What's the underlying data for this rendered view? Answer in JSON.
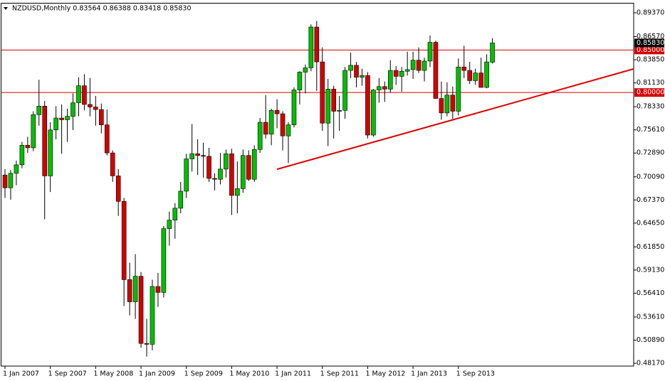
{
  "chart_data": {
    "type": "candlestick",
    "title": "NZDUSD,Monthly  0.83564 0.86388 0.83418 0.85830",
    "categories": [
      "1 Jan 2007",
      null,
      null,
      null,
      null,
      null,
      null,
      null,
      "1 Sep 2007",
      null,
      null,
      null,
      null,
      null,
      null,
      null,
      "1 May 2008",
      null,
      null,
      null,
      null,
      null,
      null,
      null,
      "1 Jan 2009",
      null,
      null,
      null,
      null,
      null,
      null,
      null,
      "1 Sep 2009",
      null,
      null,
      null,
      null,
      null,
      null,
      null,
      "1 May 2010",
      null,
      null,
      null,
      null,
      null,
      null,
      null,
      "1 Jan 2011",
      null,
      null,
      null,
      null,
      null,
      null,
      null,
      "1 Sep 2011",
      null,
      null,
      null,
      null,
      null,
      null,
      null,
      "1 May 2012",
      null,
      null,
      null,
      null,
      null,
      null,
      null,
      "1 Jan 2013",
      null,
      null,
      null,
      null,
      null,
      null,
      null,
      "1 Sep 2013",
      null,
      null,
      null,
      null,
      null,
      null
    ],
    "open": [
      0.703,
      0.688,
      0.705,
      0.715,
      0.738,
      0.735,
      0.774,
      0.784,
      0.702,
      0.756,
      0.77,
      0.768,
      0.772,
      0.788,
      0.808,
      0.786,
      0.783,
      0.78,
      0.762,
      0.729,
      0.702,
      0.672,
      0.58,
      0.554,
      0.584,
      0.505,
      0.504,
      0.572,
      0.565,
      0.64,
      0.65,
      0.664,
      0.684,
      0.722,
      0.728,
      0.726,
      0.725,
      0.699,
      0.698,
      0.71,
      0.728,
      0.679,
      0.687,
      0.726,
      0.698,
      0.733,
      0.765,
      0.751,
      0.779,
      0.775,
      0.749,
      0.762,
      0.803,
      0.824,
      0.829,
      0.877,
      0.836,
      0.764,
      0.804,
      0.778,
      0.779,
      0.826,
      0.832,
      0.818,
      0.82,
      0.75,
      0.803,
      0.807,
      0.804,
      0.826,
      0.819,
      0.825,
      0.827,
      0.838,
      0.826,
      0.837,
      0.859,
      0.793,
      0.776,
      0.797,
      0.778,
      0.83,
      0.826,
      0.814,
      0.823,
      0.806,
      0.83564
    ],
    "high": [
      0.71,
      0.709,
      0.72,
      0.742,
      0.748,
      0.778,
      0.815,
      0.79,
      0.765,
      0.784,
      0.786,
      0.781,
      0.799,
      0.818,
      0.8215,
      0.817,
      0.796,
      0.787,
      0.78,
      0.732,
      0.71,
      0.676,
      0.6,
      0.61,
      0.589,
      0.534,
      0.58,
      0.588,
      0.643,
      0.66,
      0.67,
      0.695,
      0.728,
      0.763,
      0.745,
      0.741,
      0.735,
      0.705,
      0.729,
      0.733,
      0.734,
      0.719,
      0.733,
      0.732,
      0.738,
      0.77,
      0.797,
      0.781,
      0.792,
      0.778,
      0.765,
      0.806,
      0.825,
      0.833,
      0.88,
      0.884,
      0.853,
      0.816,
      0.808,
      0.796,
      0.83,
      0.847,
      0.836,
      0.828,
      0.824,
      0.804,
      0.817,
      0.813,
      0.838,
      0.831,
      0.83,
      0.848,
      0.848,
      0.853,
      0.841,
      0.867,
      0.861,
      0.813,
      0.812,
      0.807,
      0.84,
      0.855,
      0.836,
      0.828,
      0.841,
      0.845,
      0.86388
    ],
    "low": [
      0.676,
      0.674,
      0.691,
      0.711,
      0.729,
      0.731,
      0.761,
      0.651,
      0.683,
      0.745,
      0.728,
      0.742,
      0.756,
      0.772,
      0.779,
      0.772,
      0.761,
      0.752,
      0.726,
      0.695,
      0.655,
      0.549,
      0.538,
      0.534,
      0.5,
      0.4896,
      0.497,
      0.548,
      0.559,
      0.62,
      0.628,
      0.658,
      0.676,
      0.707,
      0.703,
      0.7,
      0.695,
      0.685,
      0.692,
      0.7,
      0.656,
      0.658,
      0.682,
      0.696,
      0.695,
      0.729,
      0.746,
      0.738,
      0.758,
      0.732,
      0.717,
      0.759,
      0.786,
      0.799,
      0.825,
      0.802,
      0.755,
      0.737,
      0.746,
      0.755,
      0.769,
      0.817,
      0.806,
      0.808,
      0.746,
      0.748,
      0.788,
      0.789,
      0.8,
      0.809,
      0.801,
      0.82,
      0.816,
      0.823,
      0.813,
      0.83,
      0.793,
      0.768,
      0.772,
      0.769,
      0.773,
      0.817,
      0.81,
      0.809,
      0.806,
      0.805,
      0.83418
    ],
    "close": [
      0.688,
      0.705,
      0.715,
      0.738,
      0.735,
      0.774,
      0.784,
      0.702,
      0.756,
      0.77,
      0.768,
      0.772,
      0.788,
      0.808,
      0.786,
      0.783,
      0.78,
      0.762,
      0.729,
      0.702,
      0.672,
      0.58,
      0.554,
      0.584,
      0.505,
      0.504,
      0.572,
      0.565,
      0.64,
      0.65,
      0.664,
      0.684,
      0.722,
      0.728,
      0.726,
      0.725,
      0.699,
      0.698,
      0.71,
      0.728,
      0.679,
      0.687,
      0.726,
      0.698,
      0.733,
      0.765,
      0.751,
      0.779,
      0.775,
      0.749,
      0.762,
      0.803,
      0.824,
      0.829,
      0.877,
      0.836,
      0.764,
      0.804,
      0.778,
      0.779,
      0.826,
      0.832,
      0.818,
      0.82,
      0.75,
      0.803,
      0.807,
      0.804,
      0.826,
      0.819,
      0.825,
      0.827,
      0.838,
      0.826,
      0.837,
      0.859,
      0.793,
      0.776,
      0.797,
      0.778,
      0.83,
      0.826,
      0.814,
      0.823,
      0.806,
      0.836,
      0.8583
    ],
    "up_color": "#00c000",
    "down_color": "#d40000",
    "ylim": [
      0.4784,
      0.9046
    ],
    "yticks": [
      {
        "value": 0.8937,
        "label": "0.89370"
      },
      {
        "value": 0.8657,
        "label": "0.86570"
      },
      {
        "value": 0.8385,
        "label": "0.83850"
      },
      {
        "value": 0.8113,
        "label": "0.81130"
      },
      {
        "value": 0.7833,
        "label": "0.78330"
      },
      {
        "value": 0.7561,
        "label": "0.75610"
      },
      {
        "value": 0.7289,
        "label": "0.72890"
      },
      {
        "value": 0.7009,
        "label": "0.70090"
      },
      {
        "value": 0.6737,
        "label": "0.67370"
      },
      {
        "value": 0.6465,
        "label": "0.64650"
      },
      {
        "value": 0.6185,
        "label": "0.61850"
      },
      {
        "value": 0.5913,
        "label": "0.59130"
      },
      {
        "value": 0.5641,
        "label": "0.56410"
      },
      {
        "value": 0.5361,
        "label": "0.53610"
      },
      {
        "value": 0.5089,
        "label": "0.50890"
      },
      {
        "value": 0.4817,
        "label": "0.48170"
      }
    ],
    "hlines": [
      {
        "value": 0.85,
        "label": "0.85000"
      },
      {
        "value": 0.8,
        "label": "0.80000"
      }
    ],
    "hline_color": "#d40000",
    "last_price": {
      "value": 0.8583,
      "label": "0.85830"
    },
    "trendline": {
      "x": [
        48,
        110.9
      ],
      "y": [
        0.7098,
        0.8277
      ],
      "color": "#e00000"
    }
  }
}
